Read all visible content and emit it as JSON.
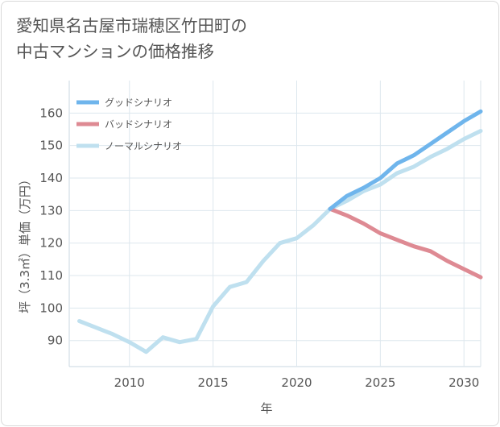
{
  "page_title": {
    "line1": "愛知県名古屋市瑞穂区竹田町の",
    "line2": "中古マンションの価格推移"
  },
  "chart_data": {
    "type": "line",
    "title": "愛知県名古屋市瑞穂区竹田町の中古マンションの価格推移",
    "xlabel": "年",
    "ylabel": "坪（3.3㎡）単価（万円）",
    "xlim": [
      2006.4,
      2031
    ],
    "ylim": [
      82,
      170
    ],
    "xticks": [
      2010,
      2015,
      2020,
      2025,
      2030
    ],
    "yticks": [
      90,
      100,
      110,
      120,
      130,
      140,
      150,
      160
    ],
    "grid": true,
    "legend_position": "top-left",
    "series": [
      {
        "name": "グッドシナリオ",
        "color": "#6fb5ec",
        "x": [
          2022,
          2023,
          2024,
          2025,
          2026,
          2027,
          2028,
          2029,
          2030,
          2031
        ],
        "y": [
          130.5,
          134.5,
          137,
          140,
          144.5,
          147,
          150.5,
          154,
          157.5,
          160.5
        ]
      },
      {
        "name": "バッドシナリオ",
        "color": "#de8a93",
        "x": [
          2022,
          2023,
          2024,
          2025,
          2026,
          2027,
          2028,
          2029,
          2030,
          2031
        ],
        "y": [
          130.5,
          128.5,
          126,
          123,
          121,
          119,
          117.5,
          114.5,
          112,
          109.5
        ]
      },
      {
        "name": "ノーマルシナリオ",
        "color": "#bfe0ef",
        "x": [
          2007,
          2008,
          2009,
          2010,
          2011,
          2012,
          2013,
          2014,
          2015,
          2016,
          2017,
          2018,
          2019,
          2020,
          2021,
          2022,
          2023,
          2024,
          2025,
          2026,
          2027,
          2028,
          2029,
          2030,
          2031
        ],
        "y": [
          96,
          94,
          92,
          89.5,
          86.5,
          91,
          89.5,
          90.5,
          100.5,
          106.5,
          108,
          114.5,
          120,
          121.5,
          125.5,
          130.5,
          133,
          136,
          138,
          141.5,
          143.5,
          146.5,
          149,
          152,
          154.5
        ]
      }
    ]
  }
}
